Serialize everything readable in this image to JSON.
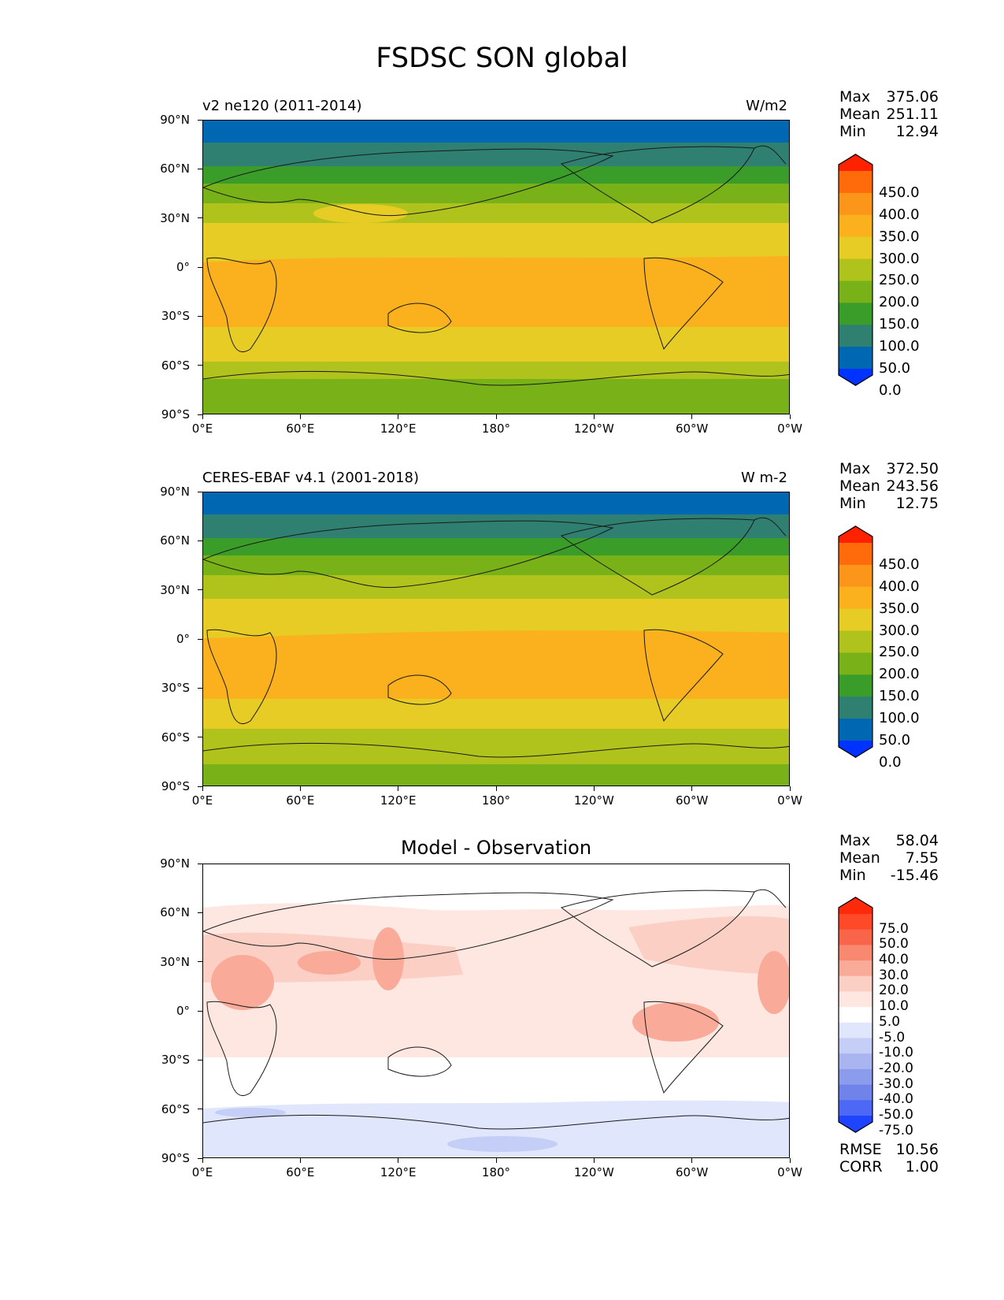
{
  "figure_title": "FSDSC SON global",
  "lat_ticks": [
    "90°N",
    "60°N",
    "30°N",
    "0°",
    "30°S",
    "60°S",
    "90°S"
  ],
  "lon_ticks": [
    "0°E",
    "60°E",
    "120°E",
    "180°",
    "120°W",
    "60°W",
    "0°W"
  ],
  "panels": [
    {
      "title_left": "v2 ne120 (2011-2014)",
      "title_right": "W/m2",
      "title_center": "",
      "stats": [
        {
          "label": "Max",
          "value": "375.06"
        },
        {
          "label": "Mean",
          "value": "251.11"
        },
        {
          "label": "Min",
          "value": "12.94"
        }
      ],
      "colorbar_labels": [
        "450.0",
        "400.0",
        "350.0",
        "300.0",
        "250.0",
        "200.0",
        "150.0",
        "100.0",
        "50.0",
        "0.0"
      ],
      "colorbar_colors": [
        "#ff2200",
        "#ff6a0a",
        "#fb961a",
        "#fbb01e",
        "#e8cc26",
        "#b0c31c",
        "#79b218",
        "#3a9d2a",
        "#2f8070",
        "#0068b3",
        "#0033ff"
      ]
    },
    {
      "title_left": "CERES-EBAF v4.1 (2001-2018)",
      "title_right": "W m-2",
      "title_center": "",
      "stats": [
        {
          "label": "Max",
          "value": "372.50"
        },
        {
          "label": "Mean",
          "value": "243.56"
        },
        {
          "label": "Min",
          "value": "12.75"
        }
      ],
      "colorbar_labels": [
        "450.0",
        "400.0",
        "350.0",
        "300.0",
        "250.0",
        "200.0",
        "150.0",
        "100.0",
        "50.0",
        "0.0"
      ],
      "colorbar_colors": [
        "#ff2200",
        "#ff6a0a",
        "#fb961a",
        "#fbb01e",
        "#e8cc26",
        "#b0c31c",
        "#79b218",
        "#3a9d2a",
        "#2f8070",
        "#0068b3",
        "#0033ff"
      ]
    },
    {
      "title_left": "",
      "title_right": "",
      "title_center": "Model - Observation",
      "stats": [
        {
          "label": "Max",
          "value": "58.04"
        },
        {
          "label": "Mean",
          "value": "7.55"
        },
        {
          "label": "Min",
          "value": "-15.46"
        }
      ],
      "colorbar_labels": [
        "75.0",
        "50.0",
        "40.0",
        "30.0",
        "20.0",
        "10.0",
        "5.0",
        "-5.0",
        "-10.0",
        "-20.0",
        "-30.0",
        "-40.0",
        "-50.0",
        "-75.0"
      ],
      "colorbar_colors": [
        "#ff2a0a",
        "#ff4a2a",
        "#f8654a",
        "#f88870",
        "#f9aa98",
        "#fccfc4",
        "#fde7e0",
        "#ffffff",
        "#e0e6fb",
        "#c4cef6",
        "#a8b5f1",
        "#8c9cec",
        "#6f83ea",
        "#4d68f5",
        "#1f44ff"
      ],
      "footer_stats": [
        {
          "label": "RMSE",
          "value": "10.56"
        },
        {
          "label": "CORR",
          "value": "1.00"
        }
      ]
    }
  ]
}
